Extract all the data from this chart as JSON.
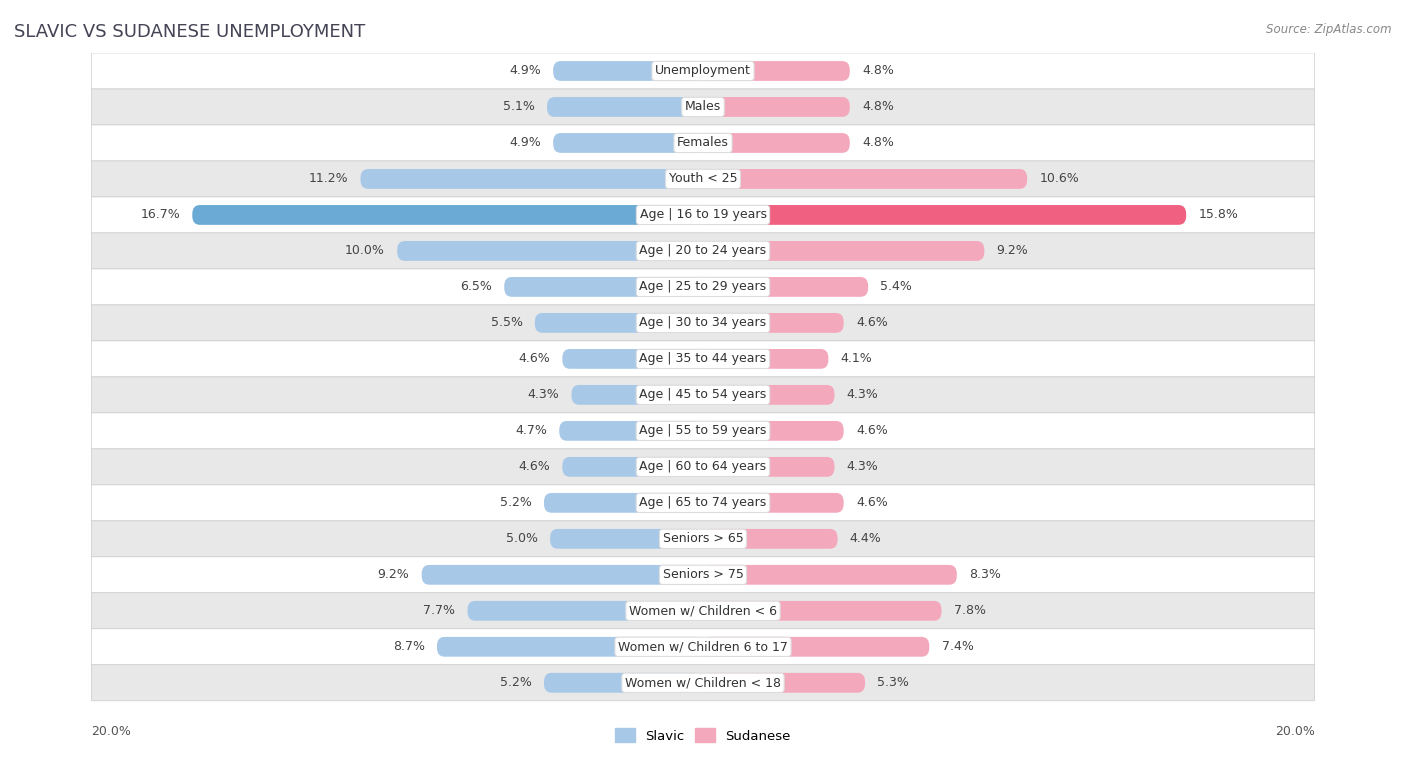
{
  "title": "SLAVIC VS SUDANESE UNEMPLOYMENT",
  "source": "Source: ZipAtlas.com",
  "categories": [
    "Unemployment",
    "Males",
    "Females",
    "Youth < 25",
    "Age | 16 to 19 years",
    "Age | 20 to 24 years",
    "Age | 25 to 29 years",
    "Age | 30 to 34 years",
    "Age | 35 to 44 years",
    "Age | 45 to 54 years",
    "Age | 55 to 59 years",
    "Age | 60 to 64 years",
    "Age | 65 to 74 years",
    "Seniors > 65",
    "Seniors > 75",
    "Women w/ Children < 6",
    "Women w/ Children 6 to 17",
    "Women w/ Children < 18"
  ],
  "slavic_values": [
    4.9,
    5.1,
    4.9,
    11.2,
    16.7,
    10.0,
    6.5,
    5.5,
    4.6,
    4.3,
    4.7,
    4.6,
    5.2,
    5.0,
    9.2,
    7.7,
    8.7,
    5.2
  ],
  "sudanese_values": [
    4.8,
    4.8,
    4.8,
    10.6,
    15.8,
    9.2,
    5.4,
    4.6,
    4.1,
    4.3,
    4.6,
    4.3,
    4.6,
    4.4,
    8.3,
    7.8,
    7.4,
    5.3
  ],
  "slavic_color": "#a8c8e8",
  "sudanese_color": "#f4a8bc",
  "highlight_slavic_color": "#6aaad4",
  "highlight_sudanese_color": "#f06080",
  "axis_max": 20.0,
  "row_bg_colors": [
    "#ffffff",
    "#e8e8e8"
  ],
  "title_fontsize": 13,
  "label_fontsize": 9,
  "value_fontsize": 9,
  "bar_height": 0.55,
  "legend_slavic": "Slavic",
  "legend_sudanese": "Sudanese"
}
